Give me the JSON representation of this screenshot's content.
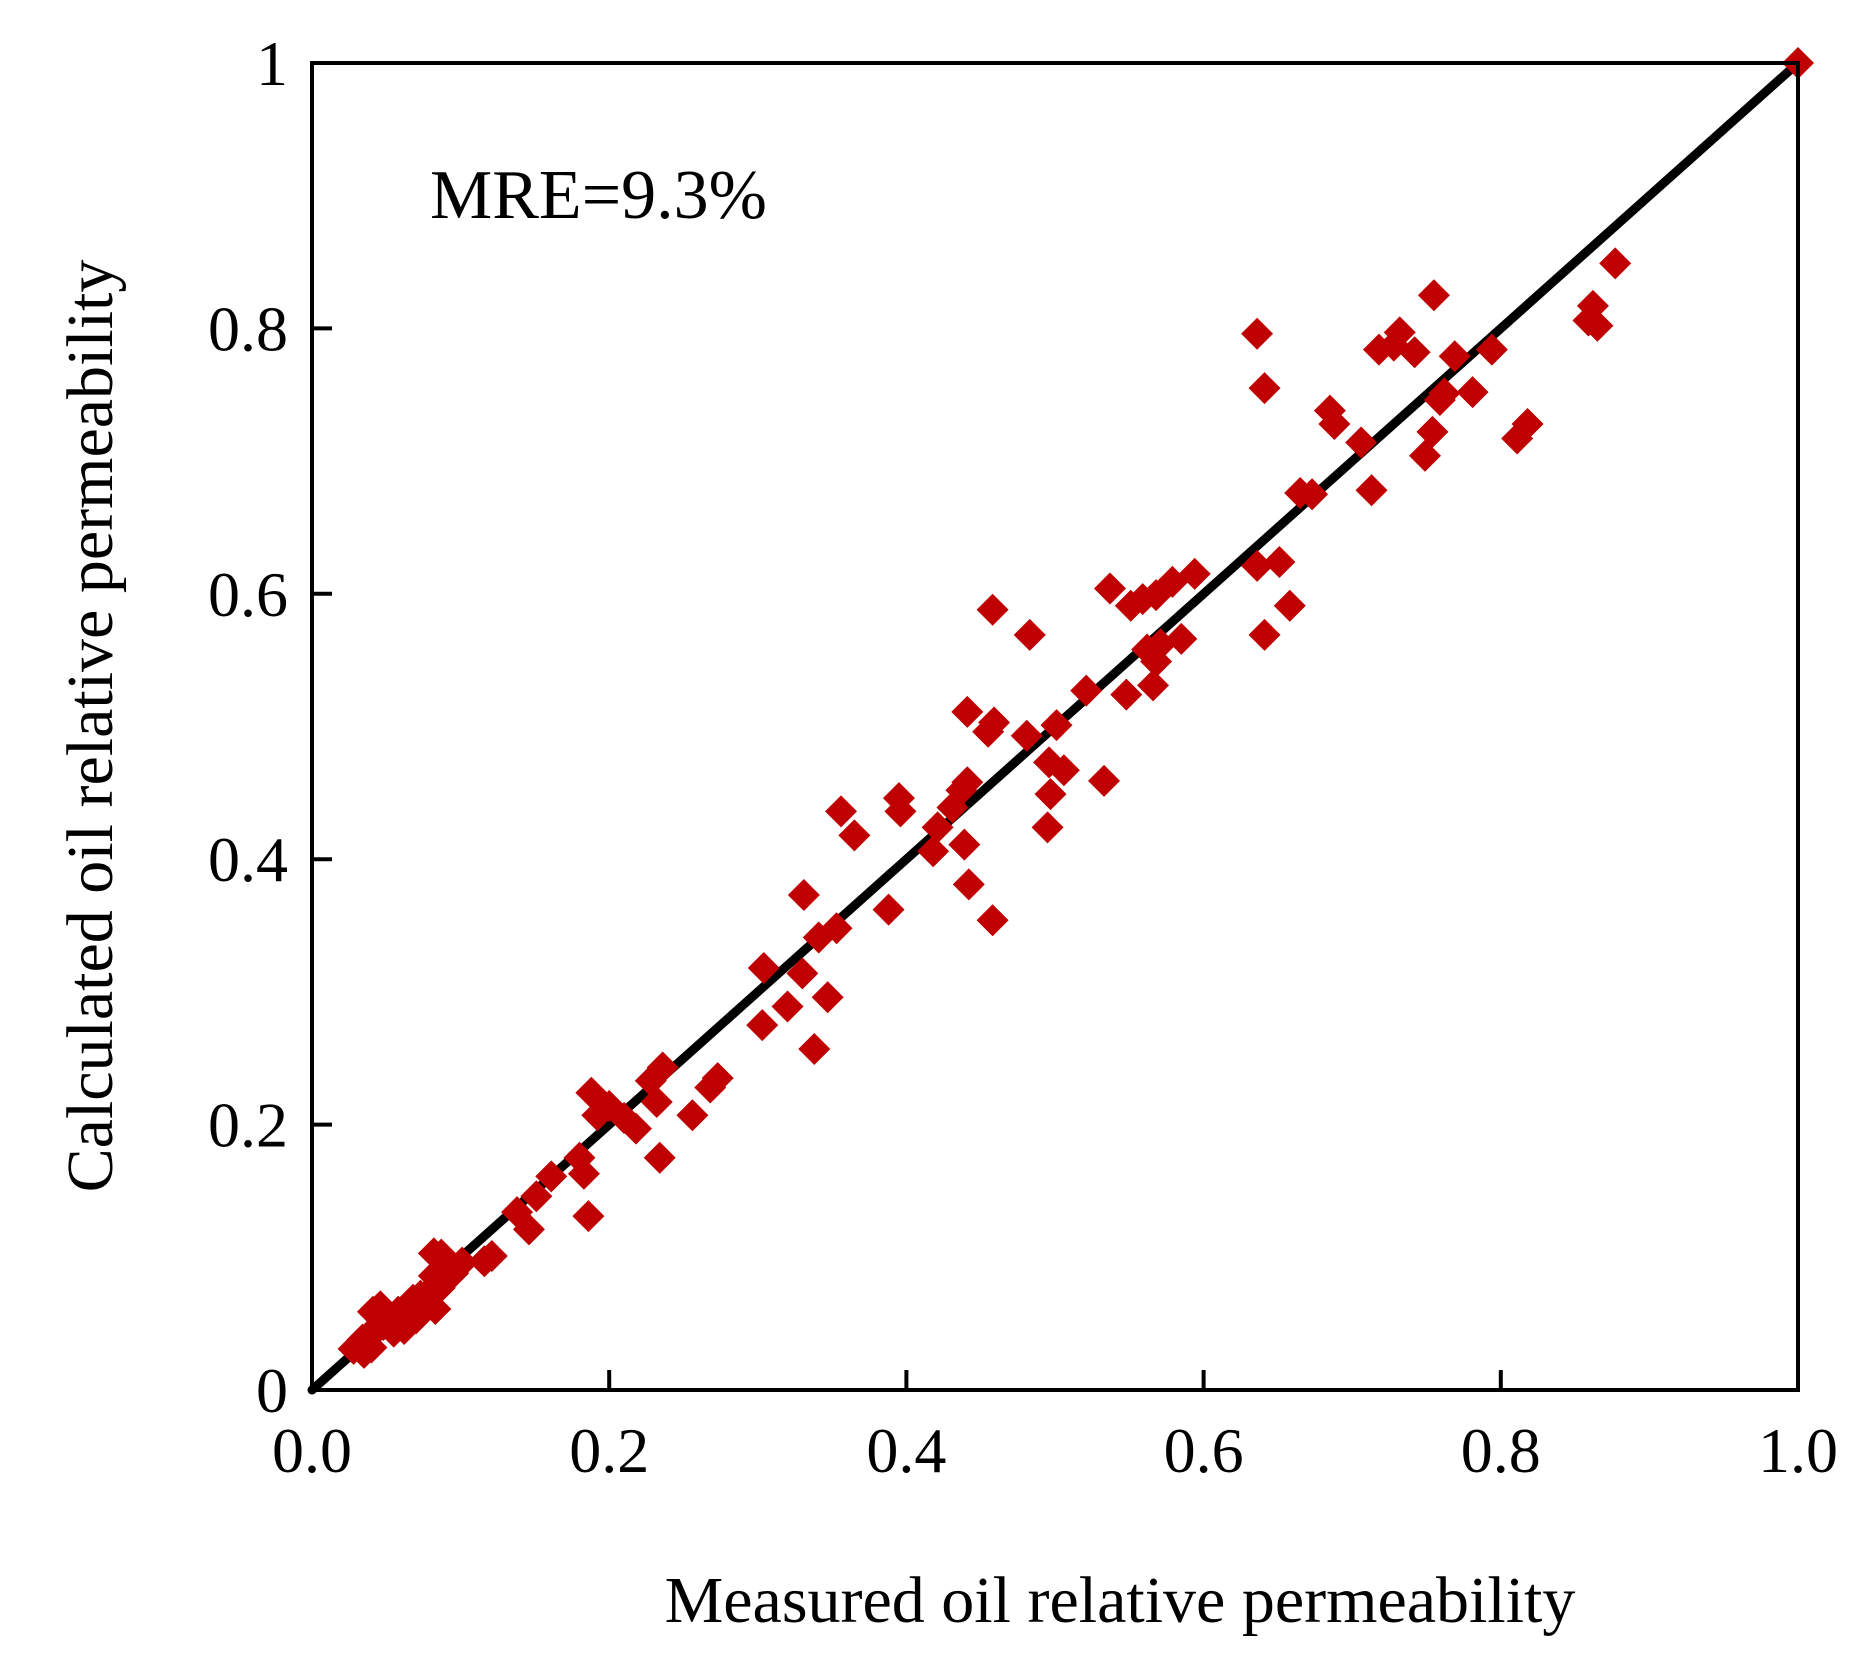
{
  "chart_data": {
    "type": "scatter",
    "title": "",
    "xlabel": "Measured oil relative permeability",
    "ylabel": "Calculated oil  relative permeability",
    "xlim": [
      0,
      1
    ],
    "ylim": [
      0,
      1
    ],
    "x_ticks": [
      0,
      0.2,
      0.4,
      0.6,
      0.8,
      1
    ],
    "x_tick_labels": [
      "0.0",
      "0.2",
      "0.4",
      "0.6",
      "0.8",
      "1.0"
    ],
    "y_ticks": [
      0,
      0.2,
      0.4,
      0.6,
      0.8,
      1
    ],
    "y_tick_labels": [
      "0",
      "0.2",
      "0.4",
      "0.6",
      "0.8",
      "1"
    ],
    "annotation": "MRE=9.3%",
    "grid": false,
    "legend": "none",
    "colors": {
      "marker": "#c00000",
      "reference_line": "#000000"
    },
    "reference_line": {
      "name": "y = x",
      "x": [
        0,
        1
      ],
      "y": [
        0,
        1
      ]
    },
    "series": [
      {
        "name": "data",
        "marker": "diamond",
        "points": [
          [
            1.0,
            1.0
          ],
          [
            0.877,
            0.849
          ],
          [
            0.865,
            0.802
          ],
          [
            0.862,
            0.817
          ],
          [
            0.859,
            0.806
          ],
          [
            0.755,
            0.825
          ],
          [
            0.732,
            0.797
          ],
          [
            0.728,
            0.787
          ],
          [
            0.718,
            0.784
          ],
          [
            0.742,
            0.782
          ],
          [
            0.769,
            0.779
          ],
          [
            0.794,
            0.784
          ],
          [
            0.759,
            0.746
          ],
          [
            0.762,
            0.751
          ],
          [
            0.781,
            0.752
          ],
          [
            0.754,
            0.722
          ],
          [
            0.749,
            0.704
          ],
          [
            0.811,
            0.717
          ],
          [
            0.818,
            0.728
          ],
          [
            0.706,
            0.714
          ],
          [
            0.713,
            0.678
          ],
          [
            0.685,
            0.738
          ],
          [
            0.688,
            0.728
          ],
          [
            0.673,
            0.675
          ],
          [
            0.665,
            0.676
          ],
          [
            0.636,
            0.796
          ],
          [
            0.641,
            0.755
          ],
          [
            0.636,
            0.621
          ],
          [
            0.651,
            0.624
          ],
          [
            0.641,
            0.569
          ],
          [
            0.658,
            0.591
          ],
          [
            0.594,
            0.615
          ],
          [
            0.579,
            0.609
          ],
          [
            0.568,
            0.599
          ],
          [
            0.537,
            0.604
          ],
          [
            0.551,
            0.591
          ],
          [
            0.559,
            0.596
          ],
          [
            0.571,
            0.562
          ],
          [
            0.585,
            0.566
          ],
          [
            0.562,
            0.558
          ],
          [
            0.568,
            0.549
          ],
          [
            0.566,
            0.531
          ],
          [
            0.548,
            0.524
          ],
          [
            0.521,
            0.527
          ],
          [
            0.458,
            0.588
          ],
          [
            0.483,
            0.569
          ],
          [
            0.441,
            0.511
          ],
          [
            0.459,
            0.503
          ],
          [
            0.455,
            0.496
          ],
          [
            0.481,
            0.493
          ],
          [
            0.501,
            0.501
          ],
          [
            0.496,
            0.473
          ],
          [
            0.506,
            0.467
          ],
          [
            0.497,
            0.449
          ],
          [
            0.495,
            0.424
          ],
          [
            0.533,
            0.459
          ],
          [
            0.441,
            0.458
          ],
          [
            0.437,
            0.452
          ],
          [
            0.431,
            0.439
          ],
          [
            0.421,
            0.424
          ],
          [
            0.418,
            0.406
          ],
          [
            0.439,
            0.411
          ],
          [
            0.442,
            0.381
          ],
          [
            0.458,
            0.354
          ],
          [
            0.395,
            0.446
          ],
          [
            0.396,
            0.436
          ],
          [
            0.356,
            0.436
          ],
          [
            0.365,
            0.418
          ],
          [
            0.388,
            0.362
          ],
          [
            0.331,
            0.373
          ],
          [
            0.353,
            0.348
          ],
          [
            0.341,
            0.341
          ],
          [
            0.33,
            0.314
          ],
          [
            0.304,
            0.318
          ],
          [
            0.32,
            0.289
          ],
          [
            0.347,
            0.296
          ],
          [
            0.303,
            0.275
          ],
          [
            0.338,
            0.257
          ],
          [
            0.273,
            0.235
          ],
          [
            0.268,
            0.228
          ],
          [
            0.256,
            0.207
          ],
          [
            0.236,
            0.243
          ],
          [
            0.228,
            0.233
          ],
          [
            0.232,
            0.217
          ],
          [
            0.234,
            0.175
          ],
          [
            0.218,
            0.197
          ],
          [
            0.21,
            0.205
          ],
          [
            0.2,
            0.214
          ],
          [
            0.188,
            0.224
          ],
          [
            0.192,
            0.207
          ],
          [
            0.18,
            0.175
          ],
          [
            0.183,
            0.163
          ],
          [
            0.186,
            0.131
          ],
          [
            0.161,
            0.161
          ],
          [
            0.151,
            0.146
          ],
          [
            0.138,
            0.134
          ],
          [
            0.146,
            0.121
          ],
          [
            0.121,
            0.101
          ],
          [
            0.116,
            0.097
          ],
          [
            0.101,
            0.096
          ],
          [
            0.087,
            0.102
          ],
          [
            0.082,
            0.103
          ],
          [
            0.091,
            0.093
          ],
          [
            0.082,
            0.086
          ],
          [
            0.086,
            0.077
          ],
          [
            0.079,
            0.074
          ],
          [
            0.073,
            0.071
          ],
          [
            0.068,
            0.068
          ],
          [
            0.064,
            0.063
          ],
          [
            0.058,
            0.059
          ],
          [
            0.056,
            0.053
          ],
          [
            0.051,
            0.055
          ],
          [
            0.048,
            0.049
          ],
          [
            0.046,
            0.063
          ],
          [
            0.041,
            0.059
          ],
          [
            0.042,
            0.044
          ],
          [
            0.038,
            0.041
          ],
          [
            0.034,
            0.038
          ],
          [
            0.031,
            0.034
          ],
          [
            0.028,
            0.031
          ],
          [
            0.035,
            0.028
          ],
          [
            0.04,
            0.032
          ],
          [
            0.062,
            0.046
          ],
          [
            0.07,
            0.054
          ],
          [
            0.077,
            0.066
          ],
          [
            0.083,
            0.061
          ],
          [
            0.095,
            0.088
          ],
          [
            0.055,
            0.044
          ]
        ]
      }
    ]
  }
}
